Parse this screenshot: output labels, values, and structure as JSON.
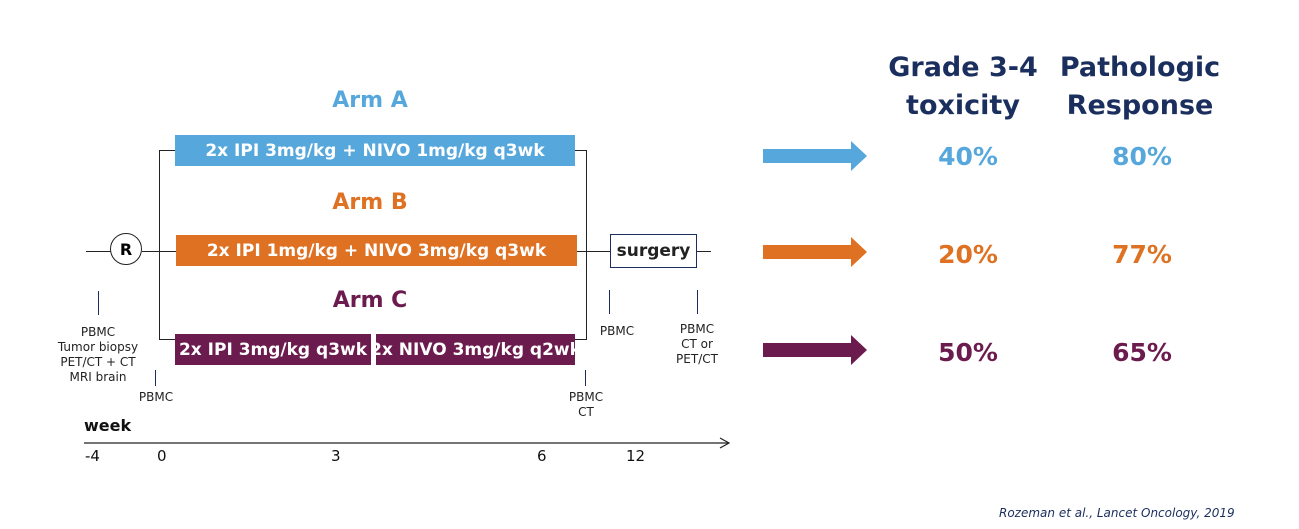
{
  "colors": {
    "arm_a": "#56a8dc",
    "arm_b": "#de7122",
    "arm_c": "#6c1b4e",
    "navy": "#1b2f5e"
  },
  "arms": {
    "a": {
      "title": "Arm A",
      "bar": "2x IPI 3mg/kg + NIVO 1mg/kg q3wk",
      "toxicity": "40%",
      "response": "80%"
    },
    "b": {
      "title": "Arm B",
      "bar": "2x IPI 1mg/kg + NIVO 3mg/kg q3wk",
      "toxicity": "20%",
      "response": "77%"
    },
    "c": {
      "title": "Arm C",
      "bar1": "2x IPI 3mg/kg q3wk",
      "bar2": "2x NIVO 3mg/kg q2wk",
      "toxicity": "50%",
      "response": "65%"
    }
  },
  "randomize_label": "R",
  "surgery_label": "surgery",
  "headers": {
    "toxicity": [
      "Grade 3-4",
      "toxicity"
    ],
    "response": [
      "Pathologic",
      "Response"
    ]
  },
  "annotations": {
    "baseline": [
      "PBMC",
      "Tumor biopsy",
      "PET/CT + CT",
      "MRI brain"
    ],
    "week0": [
      "PBMC"
    ],
    "week6": [
      "PBMC",
      "CT"
    ],
    "presurgery": [
      "PBMC"
    ],
    "postsurgery": [
      "PBMC",
      "CT or",
      "PET/CT"
    ]
  },
  "timeline": {
    "label": "week",
    "ticks": [
      "-4",
      "0",
      "3",
      "6",
      "12"
    ]
  },
  "citation": "Rozeman et al., Lancet Oncology, 2019"
}
